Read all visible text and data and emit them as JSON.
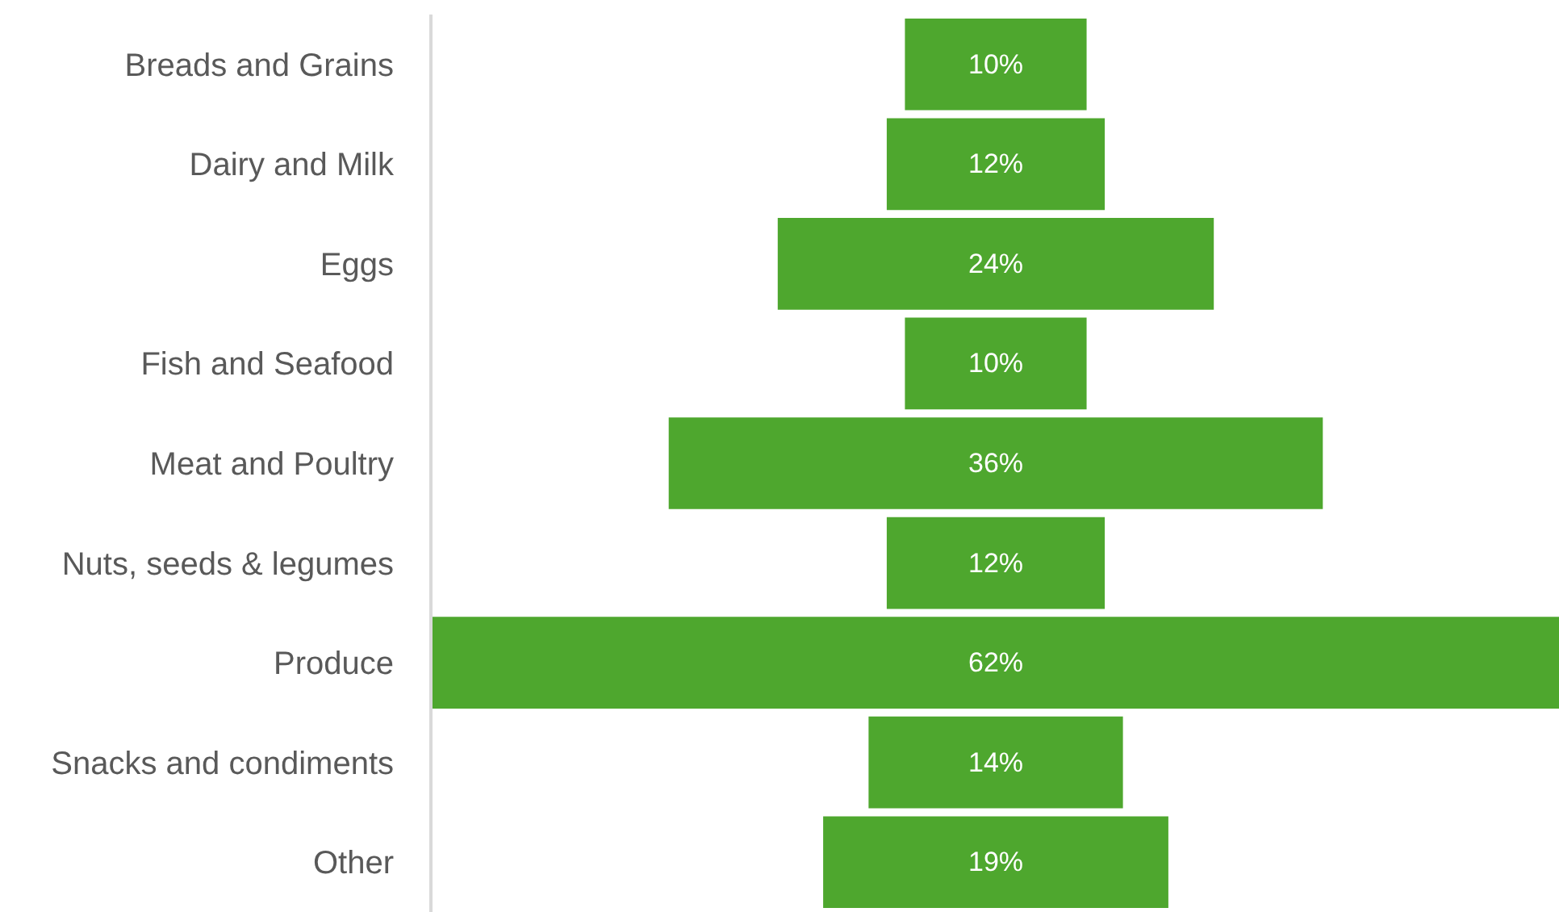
{
  "chart_data": {
    "type": "other",
    "categories": [
      "Breads and Grains",
      "Dairy and Milk",
      "Eggs",
      "Fish and Seafood",
      "Meat and Poultry",
      "Nuts, seeds & legumes",
      "Produce",
      "Snacks and condiments",
      "Other"
    ],
    "values": [
      10,
      12,
      24,
      10,
      36,
      12,
      62,
      14,
      19
    ],
    "value_labels": [
      "10%",
      "12%",
      "24%",
      "10%",
      "36%",
      "12%",
      "62%",
      "14%",
      "19%"
    ],
    "color": "#4ea72e"
  }
}
